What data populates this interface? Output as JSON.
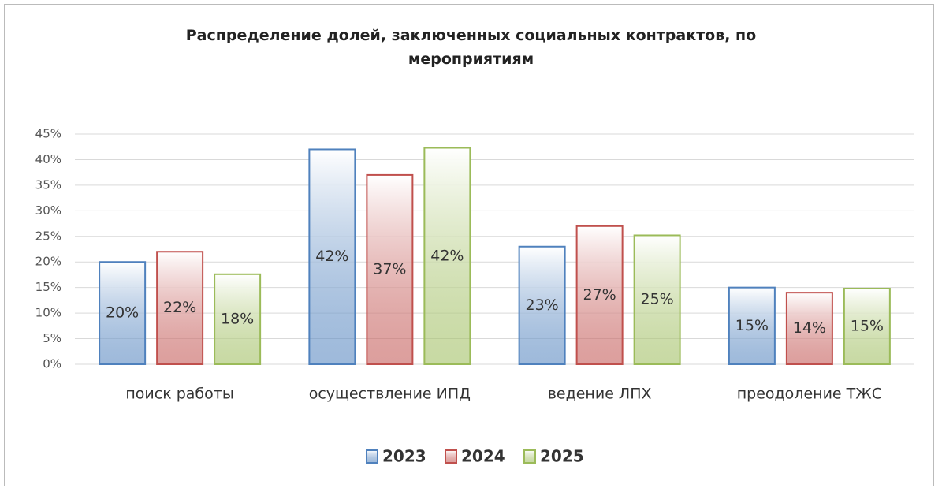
{
  "chart_data": {
    "type": "bar",
    "title": "Распределение долей, заключенных социальных контрактов, по мероприятиям",
    "categories": [
      "поиск работы",
      "осуществление ИПД",
      "ведение ЛПХ",
      "преодоление ТЖС"
    ],
    "series": [
      {
        "name": "2023",
        "color": "#4f81bd",
        "values": [
          20,
          42,
          23,
          15
        ],
        "value_labels": [
          "20%",
          "42%",
          "23%",
          "15%"
        ]
      },
      {
        "name": "2024",
        "color": "#c0504d",
        "values": [
          22,
          37,
          27,
          14
        ],
        "value_labels": [
          "22%",
          "37%",
          "27%",
          "14%"
        ]
      },
      {
        "name": "2025",
        "color": "#9bbb59",
        "values": [
          17.6,
          42.3,
          25.2,
          14.8
        ],
        "value_labels": [
          "18%",
          "42%",
          "25%",
          "15%"
        ]
      }
    ],
    "ylim": [
      0,
      45
    ],
    "yticks": [
      {
        "value": 0,
        "label": "0%"
      },
      {
        "value": 5,
        "label": "5%"
      },
      {
        "value": 10,
        "label": "10%"
      },
      {
        "value": 15,
        "label": "15%"
      },
      {
        "value": 20,
        "label": "20%"
      },
      {
        "value": 25,
        "label": "25%"
      },
      {
        "value": 30,
        "label": "30%"
      },
      {
        "value": 35,
        "label": "35%"
      },
      {
        "value": 40,
        "label": "40%"
      },
      {
        "value": 45,
        "label": "45%"
      }
    ],
    "grid": true,
    "legend": "bottom"
  }
}
